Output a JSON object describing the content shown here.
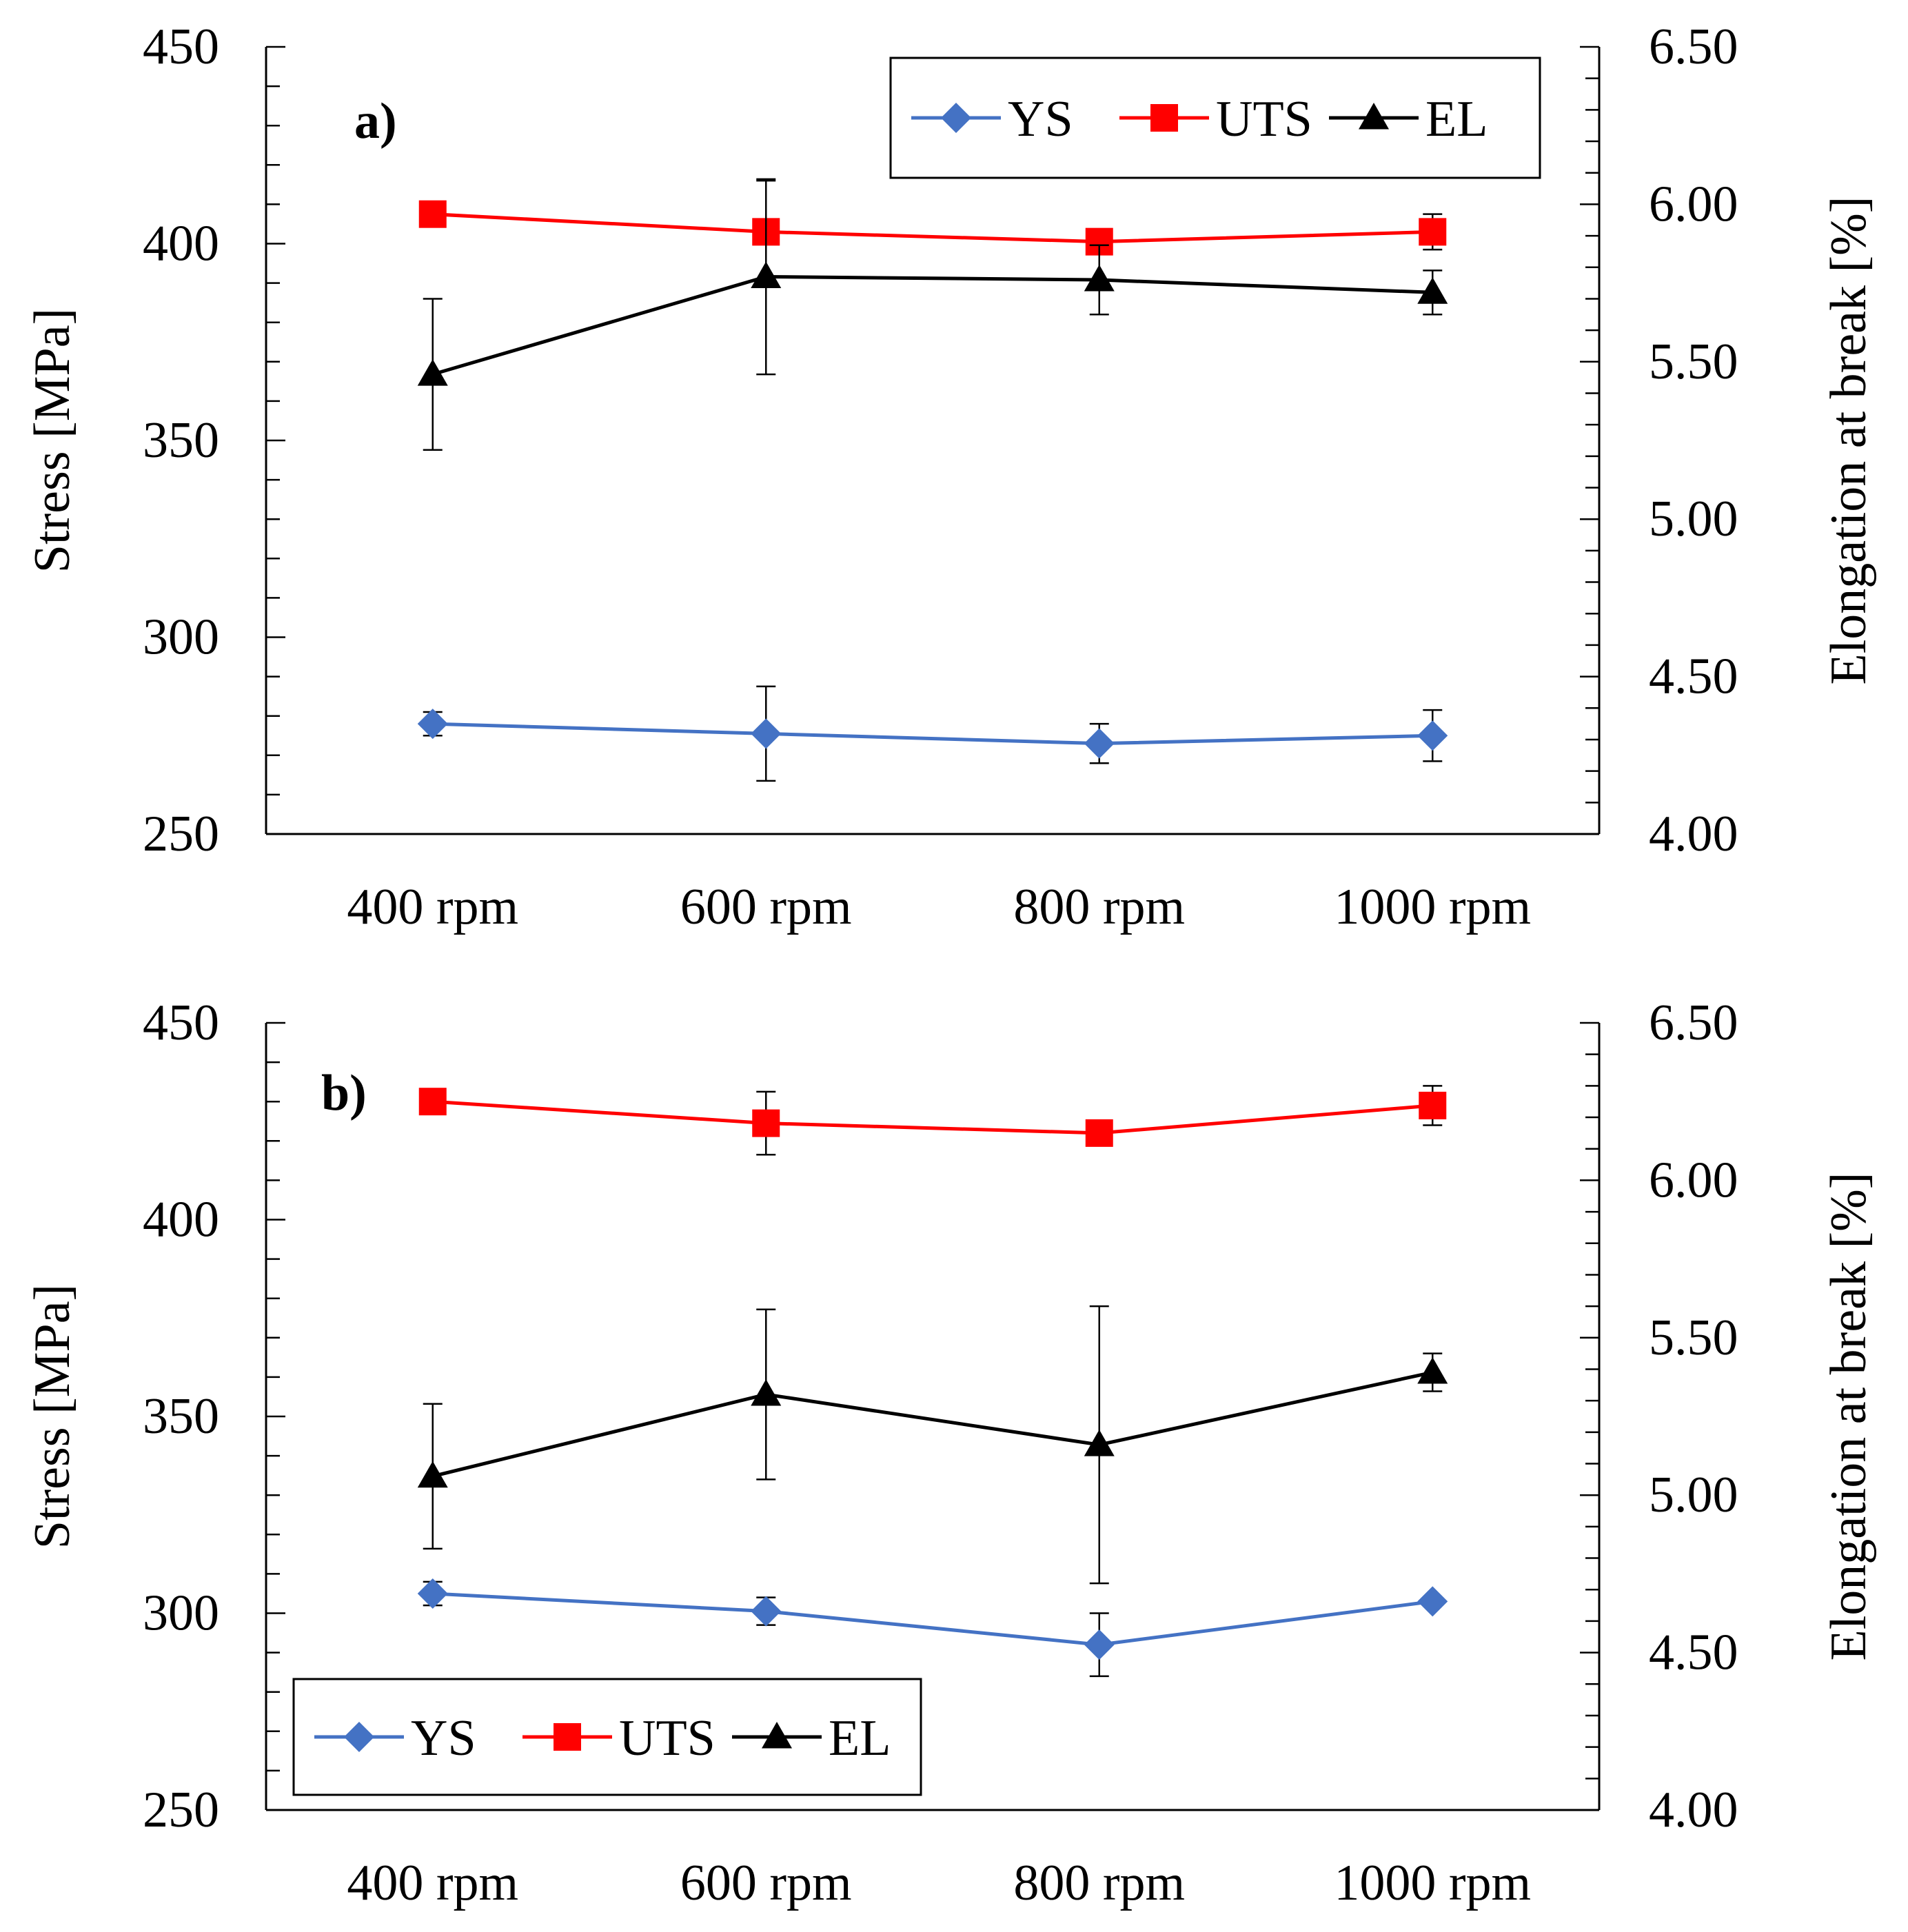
{
  "colors": {
    "ys": "#4472C4",
    "uts": "#FF0000",
    "el": "#000000"
  },
  "charts": [
    {
      "type": "line",
      "panel_label": "a)",
      "categories": [
        "400 rpm",
        "600 rpm",
        "800 rpm",
        "1000 rpm"
      ],
      "y_left": {
        "label": "Stress [MPa]",
        "range": [
          250,
          450
        ],
        "ticks": [
          "250",
          "300",
          "350",
          "400",
          "450"
        ]
      },
      "y_right": {
        "label": "Elongation at break [%]",
        "range": [
          4.0,
          6.5
        ],
        "ticks": [
          "4.00",
          "4.50",
          "5.00",
          "5.50",
          "6.00",
          "6.50"
        ]
      },
      "legend": {
        "items": [
          "YS",
          "UTS",
          "EL"
        ],
        "position": "top-right"
      },
      "series": [
        {
          "name": "YS",
          "axis": "left",
          "marker": "diamond",
          "values": [
            278,
            275.5,
            273,
            275
          ],
          "error": [
            3,
            12,
            5,
            6.5
          ]
        },
        {
          "name": "UTS",
          "axis": "left",
          "marker": "square",
          "values": [
            407.5,
            403,
            400.5,
            403
          ],
          "error": [
            0,
            13,
            3,
            4.5
          ]
        },
        {
          "name": "EL",
          "axis": "right",
          "marker": "triangle",
          "values": [
            5.46,
            5.77,
            5.76,
            5.72
          ],
          "error": [
            0.24,
            0.31,
            0.11,
            0.07
          ]
        }
      ]
    },
    {
      "type": "line",
      "panel_label": "b)",
      "categories": [
        "400 rpm",
        "600 rpm",
        "800 rpm",
        "1000 rpm"
      ],
      "y_left": {
        "label": "Stress [MPa]",
        "range": [
          250,
          450
        ],
        "ticks": [
          "250",
          "300",
          "350",
          "400",
          "450"
        ]
      },
      "y_right": {
        "label": "Elongation at break [%]",
        "range": [
          4.0,
          6.5
        ],
        "ticks": [
          "4.00",
          "4.50",
          "5.00",
          "5.50",
          "6.00",
          "6.50"
        ]
      },
      "legend": {
        "items": [
          "YS",
          "UTS",
          "EL"
        ],
        "position": "bottom-left"
      },
      "series": [
        {
          "name": "YS",
          "axis": "left",
          "marker": "diamond",
          "values": [
            305,
            300.5,
            292,
            303
          ],
          "error": [
            3,
            3.5,
            8,
            1
          ]
        },
        {
          "name": "UTS",
          "axis": "left",
          "marker": "square",
          "values": [
            430,
            424.5,
            422,
            429
          ],
          "error": [
            0,
            8,
            0,
            5
          ]
        },
        {
          "name": "EL",
          "axis": "right",
          "marker": "triangle",
          "values": [
            5.06,
            5.32,
            5.16,
            5.39
          ],
          "error": [
            0.23,
            0.27,
            0.44,
            0.06
          ]
        }
      ]
    }
  ]
}
